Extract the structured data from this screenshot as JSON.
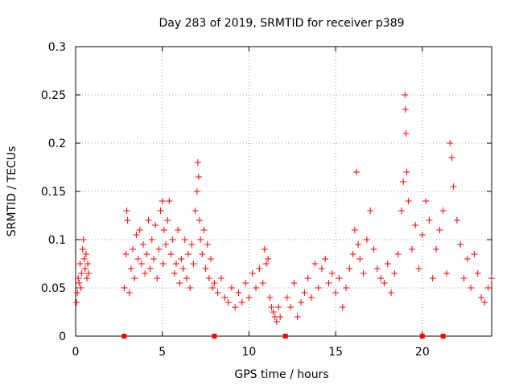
{
  "chart_data": {
    "type": "scatter",
    "title": "Day 283 of 2019, SRMTID for receiver p389",
    "xlabel": "GPS time / hours",
    "ylabel": "SRMTID / TECUs",
    "xlim": [
      0,
      24
    ],
    "ylim": [
      0,
      0.3
    ],
    "x_ticks": [
      0,
      5,
      10,
      15,
      20
    ],
    "x_tick_labels": [
      "0",
      "5",
      "10",
      "15",
      "20"
    ],
    "y_ticks": [
      0,
      0.05,
      0.1,
      0.15,
      0.2,
      0.25,
      0.3
    ],
    "y_tick_labels": [
      "0",
      "0.05",
      "0.1",
      "0.15",
      "0.2",
      "0.25",
      "0.3"
    ],
    "grid": true,
    "marker": "+",
    "color": "#ff0000",
    "series": [
      {
        "name": "SRMTID",
        "points": [
          [
            0.05,
            0.035
          ],
          [
            0.1,
            0.045
          ],
          [
            0.15,
            0.06
          ],
          [
            0.2,
            0.055
          ],
          [
            0.25,
            0.075
          ],
          [
            0.3,
            0.05
          ],
          [
            0.35,
            0.065
          ],
          [
            0.4,
            0.09
          ],
          [
            0.45,
            0.1
          ],
          [
            0.5,
            0.08
          ],
          [
            0.55,
            0.07
          ],
          [
            0.6,
            0.085
          ],
          [
            0.65,
            0.06
          ],
          [
            0.7,
            0.075
          ],
          [
            0.75,
            0.065
          ],
          [
            2.8,
            0.05
          ],
          [
            2.9,
            0.085
          ],
          [
            2.95,
            0.13
          ],
          [
            3.0,
            0.12
          ],
          [
            3.1,
            0.045
          ],
          [
            3.2,
            0.07
          ],
          [
            3.3,
            0.09
          ],
          [
            3.4,
            0.06
          ],
          [
            3.5,
            0.105
          ],
          [
            3.6,
            0.08
          ],
          [
            3.7,
            0.11
          ],
          [
            3.8,
            0.075
          ],
          [
            3.9,
            0.095
          ],
          [
            4.0,
            0.065
          ],
          [
            4.1,
            0.085
          ],
          [
            4.2,
            0.12
          ],
          [
            4.3,
            0.07
          ],
          [
            4.4,
            0.1
          ],
          [
            4.5,
            0.08
          ],
          [
            4.6,
            0.115
          ],
          [
            4.7,
            0.06
          ],
          [
            4.8,
            0.09
          ],
          [
            4.9,
            0.13
          ],
          [
            5.0,
            0.14
          ],
          [
            5.05,
            0.075
          ],
          [
            5.1,
            0.11
          ],
          [
            5.2,
            0.095
          ],
          [
            5.3,
            0.12
          ],
          [
            5.4,
            0.14
          ],
          [
            5.5,
            0.085
          ],
          [
            5.6,
            0.1
          ],
          [
            5.7,
            0.065
          ],
          [
            5.8,
            0.075
          ],
          [
            5.9,
            0.11
          ],
          [
            6.0,
            0.055
          ],
          [
            6.1,
            0.08
          ],
          [
            6.2,
            0.07
          ],
          [
            6.3,
            0.1
          ],
          [
            6.4,
            0.06
          ],
          [
            6.5,
            0.085
          ],
          [
            6.6,
            0.05
          ],
          [
            6.7,
            0.095
          ],
          [
            6.8,
            0.075
          ],
          [
            6.9,
            0.13
          ],
          [
            7.0,
            0.15
          ],
          [
            7.05,
            0.18
          ],
          [
            7.1,
            0.165
          ],
          [
            7.15,
            0.12
          ],
          [
            7.2,
            0.1
          ],
          [
            7.3,
            0.085
          ],
          [
            7.4,
            0.11
          ],
          [
            7.5,
            0.07
          ],
          [
            7.6,
            0.095
          ],
          [
            7.7,
            0.06
          ],
          [
            7.8,
            0.08
          ],
          [
            7.9,
            0.05
          ],
          [
            8.0,
            0.055
          ],
          [
            8.2,
            0.045
          ],
          [
            8.4,
            0.06
          ],
          [
            8.6,
            0.04
          ],
          [
            8.8,
            0.035
          ],
          [
            9.0,
            0.05
          ],
          [
            9.2,
            0.03
          ],
          [
            9.4,
            0.045
          ],
          [
            9.6,
            0.035
          ],
          [
            9.8,
            0.055
          ],
          [
            10.0,
            0.04
          ],
          [
            10.2,
            0.065
          ],
          [
            10.4,
            0.05
          ],
          [
            10.6,
            0.07
          ],
          [
            10.8,
            0.055
          ],
          [
            10.9,
            0.09
          ],
          [
            11.0,
            0.075
          ],
          [
            11.1,
            0.08
          ],
          [
            11.2,
            0.04
          ],
          [
            11.3,
            0.03
          ],
          [
            11.4,
            0.025
          ],
          [
            11.5,
            0.02
          ],
          [
            11.6,
            0.015
          ],
          [
            11.7,
            0.03
          ],
          [
            11.8,
            0.02
          ],
          [
            12.2,
            0.04
          ],
          [
            12.4,
            0.03
          ],
          [
            12.6,
            0.055
          ],
          [
            12.8,
            0.02
          ],
          [
            13.0,
            0.035
          ],
          [
            13.2,
            0.045
          ],
          [
            13.4,
            0.06
          ],
          [
            13.6,
            0.04
          ],
          [
            13.8,
            0.075
          ],
          [
            14.0,
            0.05
          ],
          [
            14.2,
            0.07
          ],
          [
            14.4,
            0.08
          ],
          [
            14.6,
            0.055
          ],
          [
            14.8,
            0.065
          ],
          [
            15.0,
            0.045
          ],
          [
            15.2,
            0.06
          ],
          [
            15.4,
            0.03
          ],
          [
            15.6,
            0.05
          ],
          [
            15.8,
            0.07
          ],
          [
            16.0,
            0.085
          ],
          [
            16.1,
            0.11
          ],
          [
            16.2,
            0.17
          ],
          [
            16.3,
            0.095
          ],
          [
            16.4,
            0.08
          ],
          [
            16.6,
            0.065
          ],
          [
            16.8,
            0.1
          ],
          [
            17.0,
            0.13
          ],
          [
            17.2,
            0.09
          ],
          [
            17.4,
            0.07
          ],
          [
            17.6,
            0.06
          ],
          [
            17.8,
            0.055
          ],
          [
            18.0,
            0.075
          ],
          [
            18.2,
            0.045
          ],
          [
            18.4,
            0.065
          ],
          [
            18.6,
            0.085
          ],
          [
            18.8,
            0.13
          ],
          [
            18.9,
            0.16
          ],
          [
            19.0,
            0.25
          ],
          [
            19.02,
            0.235
          ],
          [
            19.05,
            0.21
          ],
          [
            19.1,
            0.17
          ],
          [
            19.2,
            0.14
          ],
          [
            19.4,
            0.09
          ],
          [
            19.6,
            0.115
          ],
          [
            19.8,
            0.07
          ],
          [
            20.0,
            0.105
          ],
          [
            20.2,
            0.14
          ],
          [
            20.4,
            0.12
          ],
          [
            20.6,
            0.06
          ],
          [
            20.8,
            0.09
          ],
          [
            21.0,
            0.11
          ],
          [
            21.2,
            0.13
          ],
          [
            21.4,
            0.065
          ],
          [
            21.6,
            0.2
          ],
          [
            21.7,
            0.185
          ],
          [
            21.8,
            0.155
          ],
          [
            22.0,
            0.12
          ],
          [
            22.2,
            0.095
          ],
          [
            22.4,
            0.06
          ],
          [
            22.6,
            0.08
          ],
          [
            22.8,
            0.05
          ],
          [
            23.0,
            0.085
          ],
          [
            23.2,
            0.065
          ],
          [
            23.4,
            0.04
          ],
          [
            23.6,
            0.035
          ],
          [
            23.8,
            0.05
          ],
          [
            24.0,
            0.06
          ]
        ]
      }
    ],
    "zero_markers_x": [
      2.8,
      8.0,
      12.1,
      20.0,
      21.2
    ]
  }
}
